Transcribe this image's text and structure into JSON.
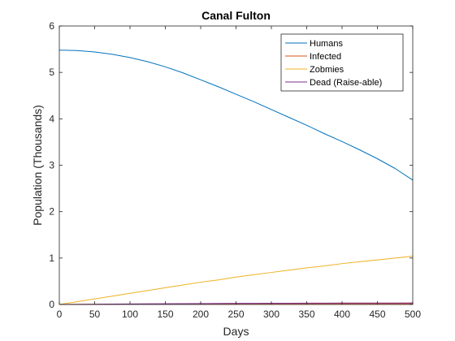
{
  "chart_data": {
    "type": "line",
    "title": "Canal Fulton",
    "xlabel": "Days",
    "ylabel": "Population (Thousands)",
    "xlim": [
      0,
      500
    ],
    "ylim": [
      0,
      6
    ],
    "xticks": [
      0,
      50,
      100,
      150,
      200,
      250,
      300,
      350,
      400,
      450,
      500
    ],
    "yticks": [
      0,
      1,
      2,
      3,
      4,
      5,
      6
    ],
    "grid": false,
    "legend_position": "top-right",
    "x": [
      0,
      25,
      50,
      75,
      100,
      125,
      150,
      175,
      200,
      225,
      250,
      275,
      300,
      325,
      350,
      375,
      400,
      425,
      450,
      475,
      500
    ],
    "series": [
      {
        "name": "Humans",
        "color": "#0072BD",
        "values": [
          5.48,
          5.47,
          5.44,
          5.39,
          5.32,
          5.23,
          5.12,
          4.99,
          4.84,
          4.69,
          4.53,
          4.37,
          4.2,
          4.03,
          3.86,
          3.68,
          3.51,
          3.33,
          3.14,
          2.93,
          2.68
        ]
      },
      {
        "name": "Infected",
        "color": "#D95319",
        "values": [
          0.0,
          0.002,
          0.004,
          0.006,
          0.008,
          0.01,
          0.011,
          0.012,
          0.013,
          0.014,
          0.015,
          0.016,
          0.016,
          0.017,
          0.017,
          0.017,
          0.017,
          0.017,
          0.017,
          0.017,
          0.017
        ]
      },
      {
        "name": "Zobmies",
        "color": "#EDB120",
        "values": [
          0.0,
          0.06,
          0.12,
          0.18,
          0.24,
          0.3,
          0.36,
          0.42,
          0.48,
          0.53,
          0.59,
          0.64,
          0.69,
          0.74,
          0.79,
          0.83,
          0.88,
          0.92,
          0.96,
          1.0,
          1.04
        ]
      },
      {
        "name": "Dead (Raise-able)",
        "color": "#7E2F8E",
        "values": [
          0.0,
          0.002,
          0.005,
          0.008,
          0.011,
          0.014,
          0.016,
          0.018,
          0.02,
          0.022,
          0.024,
          0.025,
          0.026,
          0.027,
          0.028,
          0.029,
          0.03,
          0.03,
          0.031,
          0.031,
          0.032
        ]
      }
    ]
  }
}
